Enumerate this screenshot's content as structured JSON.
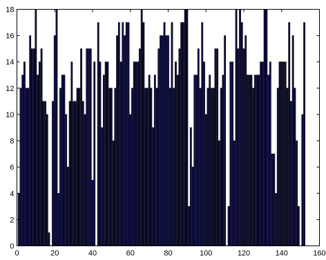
{
  "chart_data": {
    "type": "bar",
    "title": "",
    "xlabel": "",
    "ylabel": "",
    "xlim": [
      0,
      160
    ],
    "ylim": [
      0,
      18
    ],
    "xticks": [
      "0",
      "20",
      "40",
      "60",
      "80",
      "100",
      "120",
      "140",
      "160"
    ],
    "yticks": [
      "0",
      "2",
      "4",
      "6",
      "8",
      "10",
      "12",
      "14",
      "16",
      "18"
    ],
    "grid": false,
    "legend": "none",
    "bar_color": "#10104a",
    "edge_color": "#000000",
    "x": [
      1,
      2,
      3,
      4,
      5,
      6,
      7,
      8,
      9,
      10,
      11,
      12,
      13,
      14,
      15,
      16,
      17,
      18,
      19,
      20,
      21,
      22,
      23,
      24,
      25,
      26,
      27,
      28,
      29,
      30,
      31,
      32,
      33,
      34,
      35,
      36,
      37,
      38,
      39,
      40,
      41,
      42,
      43,
      44,
      45,
      46,
      47,
      48,
      49,
      50,
      51,
      52,
      53,
      54,
      55,
      56,
      57,
      58,
      59,
      60,
      61,
      62,
      63,
      64,
      65,
      66,
      67,
      68,
      69,
      70,
      71,
      72,
      73,
      74,
      75,
      76,
      77,
      78,
      79,
      80,
      81,
      82,
      83,
      84,
      85,
      86,
      87,
      88,
      89,
      90,
      91,
      92,
      93,
      94,
      95,
      96,
      97,
      98,
      99,
      100,
      101,
      102,
      103,
      104,
      105,
      106,
      107,
      108,
      109,
      110,
      111,
      112,
      113,
      114,
      115,
      116,
      117,
      118,
      119,
      120,
      121,
      122,
      123,
      124,
      125,
      126,
      127,
      128,
      129,
      130,
      131,
      132,
      133,
      134,
      135,
      136,
      137,
      138,
      139,
      140,
      141,
      142,
      143,
      144,
      145,
      146,
      147,
      148,
      149,
      150,
      151,
      152
    ],
    "values": [
      4,
      12,
      13,
      14,
      12,
      12,
      16,
      15,
      15,
      18,
      13,
      14,
      15,
      11,
      11,
      10,
      1,
      0,
      11,
      16,
      18,
      4,
      12,
      13,
      13,
      10,
      6,
      11,
      14,
      11,
      11,
      12,
      12,
      15,
      11,
      10,
      15,
      15,
      15,
      5,
      14,
      0,
      17,
      14,
      9,
      13,
      14,
      14,
      12,
      12,
      8,
      12,
      16,
      17,
      14,
      17,
      16,
      17,
      17,
      10,
      12,
      14,
      14,
      14,
      15,
      18,
      17,
      12,
      12,
      13,
      12,
      9,
      13,
      12,
      15,
      16,
      16,
      17,
      16,
      16,
      12,
      17,
      12,
      14,
      13,
      15,
      17,
      17,
      18,
      18,
      3,
      9,
      6,
      13,
      13,
      15,
      12,
      17,
      14,
      10,
      12,
      13,
      12,
      12,
      15,
      15,
      8,
      12,
      13,
      16,
      0,
      3,
      14,
      14,
      8,
      18,
      15,
      18,
      17,
      15,
      16,
      13,
      13,
      13,
      12,
      13,
      13,
      13,
      14,
      14,
      18,
      18,
      13,
      14,
      7,
      7,
      4,
      12,
      14,
      14,
      14,
      14,
      12,
      17,
      11,
      16,
      12,
      8,
      3,
      0,
      10,
      17
    ]
  }
}
